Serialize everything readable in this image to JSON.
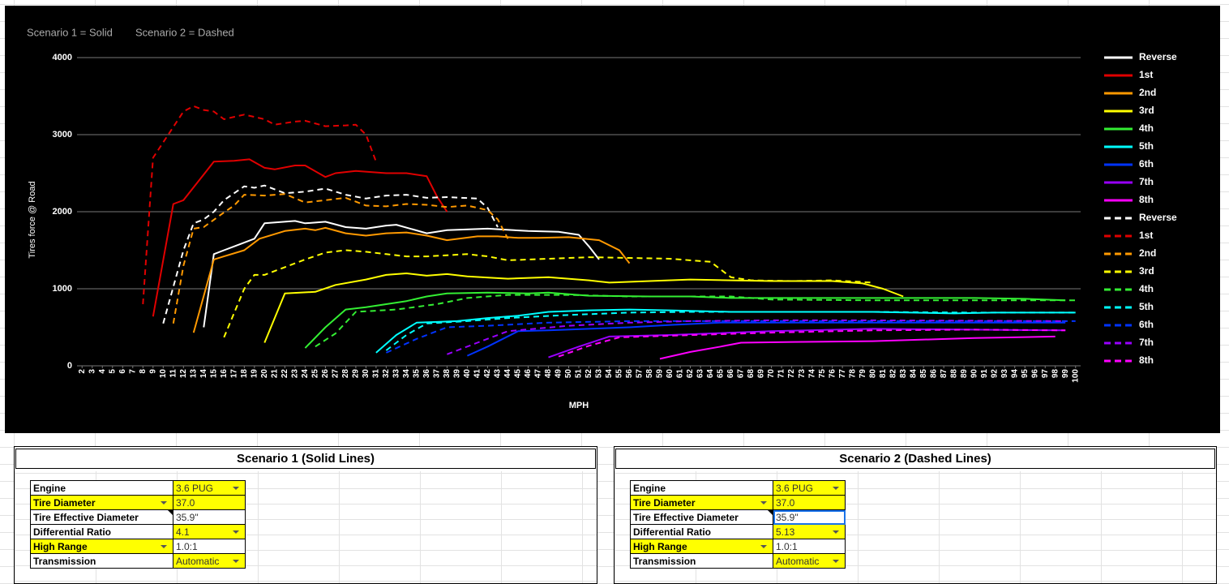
{
  "chart_data": {
    "type": "line",
    "annotations": [
      "Scenario 1 = Solid",
      "Scenario 2 = Dashed"
    ],
    "ylabel": "Tires force @ Road",
    "xlabel": "MPH",
    "ylim": [
      0,
      4000
    ],
    "yticks": [
      0,
      1000,
      2000,
      3000,
      4000
    ],
    "xlim": [
      1.5,
      100.5
    ],
    "xticks": [
      2,
      3,
      4,
      5,
      6,
      7,
      8,
      9,
      10,
      11,
      12,
      13,
      14,
      15,
      16,
      17,
      18,
      19,
      20,
      21,
      22,
      23,
      24,
      25,
      26,
      27,
      28,
      29,
      30,
      31,
      32,
      33,
      34,
      35,
      36,
      37,
      38,
      39,
      40,
      41,
      42,
      43,
      44,
      45,
      46,
      47,
      48,
      49,
      50,
      51,
      52,
      53,
      54,
      55,
      56,
      57,
      58,
      59,
      60,
      61,
      62,
      63,
      64,
      65,
      66,
      67,
      68,
      69,
      70,
      71,
      72,
      73,
      74,
      75,
      76,
      77,
      78,
      79,
      80,
      81,
      82,
      83,
      84,
      85,
      86,
      87,
      88,
      89,
      90,
      91,
      92,
      93,
      94,
      95,
      96,
      97,
      98,
      99,
      100
    ],
    "grid": true,
    "series": [
      {
        "name": "Reverse",
        "color": "#ffffff",
        "dashed": false,
        "x": [
          14,
          15,
          16,
          17,
          19,
          20,
          23,
          24,
          26,
          28,
          30,
          32,
          33,
          36,
          38,
          42,
          46,
          49,
          51,
          52,
          53
        ],
        "values": [
          500,
          1450,
          1500,
          1550,
          1650,
          1850,
          1880,
          1850,
          1870,
          1800,
          1780,
          1820,
          1830,
          1720,
          1760,
          1780,
          1750,
          1740,
          1700,
          1550,
          1380
        ]
      },
      {
        "name": "1st",
        "color": "#e00000",
        "dashed": false,
        "x": [
          9,
          11,
          12,
          13.5,
          15,
          17,
          18.5,
          20,
          21,
          23,
          24,
          26,
          27,
          29,
          32,
          34,
          36,
          37,
          38
        ],
        "values": [
          640,
          2100,
          2150,
          2400,
          2650,
          2660,
          2680,
          2570,
          2550,
          2600,
          2600,
          2450,
          2500,
          2530,
          2500,
          2500,
          2460,
          2200,
          2000
        ]
      },
      {
        "name": "2nd",
        "color": "#ff9900",
        "dashed": false,
        "x": [
          13,
          15,
          16,
          18,
          19.5,
          22,
          24,
          25,
          26,
          28,
          30,
          32,
          34,
          36,
          38,
          41,
          43,
          45,
          47,
          50,
          53,
          55,
          56
        ],
        "values": [
          430,
          1380,
          1420,
          1500,
          1650,
          1750,
          1780,
          1760,
          1790,
          1720,
          1690,
          1720,
          1730,
          1690,
          1630,
          1680,
          1680,
          1660,
          1660,
          1670,
          1630,
          1500,
          1330
        ]
      },
      {
        "name": "3rd",
        "color": "#ffff00",
        "dashed": false,
        "x": [
          20,
          22,
          25,
          27,
          30,
          32,
          34,
          36,
          38,
          40,
          44,
          48,
          52,
          54,
          58,
          62,
          66,
          70,
          76,
          79,
          81,
          83
        ],
        "values": [
          300,
          940,
          960,
          1050,
          1120,
          1180,
          1200,
          1170,
          1190,
          1160,
          1130,
          1150,
          1110,
          1080,
          1100,
          1120,
          1110,
          1100,
          1100,
          1070,
          1000,
          900
        ]
      },
      {
        "name": "4th",
        "color": "#33ee33",
        "dashed": false,
        "x": [
          24,
          26,
          28,
          30,
          32,
          34,
          36,
          38,
          42,
          46,
          48,
          52,
          58,
          62,
          66,
          70,
          80,
          90,
          95,
          99
        ],
        "values": [
          230,
          500,
          730,
          760,
          800,
          840,
          900,
          940,
          950,
          940,
          950,
          910,
          900,
          900,
          880,
          880,
          880,
          880,
          870,
          850
        ]
      },
      {
        "name": "5th",
        "color": "#00ffff",
        "dashed": false,
        "x": [
          31,
          33,
          35,
          37,
          39,
          42,
          45,
          48,
          52,
          56,
          60,
          66,
          72,
          80,
          88,
          92,
          100
        ],
        "values": [
          170,
          400,
          560,
          570,
          580,
          620,
          650,
          700,
          720,
          730,
          720,
          700,
          700,
          700,
          680,
          690,
          690
        ]
      },
      {
        "name": "6th",
        "color": "#0033ff",
        "dashed": false,
        "x": [
          40,
          42,
          45,
          48,
          52,
          56,
          60,
          65,
          70,
          80,
          90,
          99
        ],
        "values": [
          130,
          250,
          450,
          460,
          480,
          500,
          530,
          560,
          560,
          560,
          560,
          560
        ]
      },
      {
        "name": "7th",
        "color": "#9900ff",
        "dashed": false,
        "x": [
          48,
          51,
          54,
          60,
          70,
          80,
          90,
          99
        ],
        "values": [
          110,
          250,
          380,
          400,
          450,
          480,
          470,
          460
        ]
      },
      {
        "name": "8th",
        "color": "#ff00ff",
        "dashed": false,
        "x": [
          59,
          62,
          65,
          67,
          72,
          80,
          90,
          98
        ],
        "values": [
          90,
          180,
          250,
          300,
          310,
          320,
          360,
          380
        ]
      },
      {
        "name": "Reverse",
        "color": "#ffffff",
        "dashed": true,
        "x": [
          10,
          12,
          13,
          14,
          15,
          16,
          18,
          19,
          20,
          22,
          24,
          26,
          28,
          30,
          32,
          34,
          36,
          38,
          41,
          42,
          43
        ],
        "values": [
          550,
          1500,
          1850,
          1900,
          2000,
          2150,
          2330,
          2310,
          2340,
          2240,
          2260,
          2300,
          2220,
          2170,
          2210,
          2220,
          2180,
          2190,
          2170,
          2050,
          1800
        ]
      },
      {
        "name": "1st",
        "color": "#e00000",
        "dashed": true,
        "x": [
          8,
          9,
          10,
          11,
          12,
          13,
          14,
          15,
          16,
          17,
          18,
          20,
          21,
          23,
          24,
          26,
          28,
          29,
          30,
          31
        ],
        "values": [
          800,
          2700,
          2900,
          3100,
          3300,
          3370,
          3320,
          3300,
          3200,
          3230,
          3260,
          3200,
          3130,
          3170,
          3180,
          3110,
          3120,
          3130,
          3000,
          2650
        ]
      },
      {
        "name": "2nd",
        "color": "#ff9900",
        "dashed": true,
        "x": [
          11,
          12,
          13,
          14,
          16,
          17,
          18,
          20,
          22,
          24,
          26,
          28,
          30,
          32,
          34,
          36,
          38,
          40,
          42,
          43,
          44
        ],
        "values": [
          550,
          1300,
          1780,
          1800,
          1990,
          2080,
          2220,
          2210,
          2230,
          2120,
          2150,
          2180,
          2080,
          2070,
          2100,
          2090,
          2060,
          2080,
          2020,
          1900,
          1650
        ]
      },
      {
        "name": "3rd",
        "color": "#ffff00",
        "dashed": true,
        "x": [
          16,
          18,
          19,
          20,
          22,
          24,
          26,
          28,
          30,
          32,
          34,
          36,
          40,
          42,
          44,
          48,
          52,
          56,
          60,
          64,
          66,
          68,
          72,
          76,
          80
        ],
        "values": [
          370,
          1000,
          1180,
          1180,
          1280,
          1380,
          1470,
          1500,
          1480,
          1450,
          1420,
          1420,
          1450,
          1420,
          1370,
          1390,
          1410,
          1400,
          1390,
          1350,
          1150,
          1110,
          1100,
          1110,
          1080
        ]
      },
      {
        "name": "4th",
        "color": "#33ee33",
        "dashed": true,
        "x": [
          25,
          27,
          29,
          33,
          37,
          40,
          44,
          50,
          56,
          60,
          66,
          70,
          80,
          88,
          100
        ],
        "values": [
          250,
          420,
          700,
          730,
          800,
          880,
          920,
          920,
          900,
          900,
          900,
          860,
          850,
          850,
          850
        ]
      },
      {
        "name": "5th",
        "color": "#00ffff",
        "dashed": true,
        "x": [
          32,
          34,
          36,
          40,
          44,
          50,
          56,
          62,
          70,
          80,
          90,
          100
        ],
        "values": [
          200,
          400,
          550,
          580,
          620,
          660,
          690,
          700,
          700,
          700,
          690,
          690
        ]
      },
      {
        "name": "6th",
        "color": "#0033ff",
        "dashed": true,
        "x": [
          32,
          35,
          38,
          42,
          48,
          56,
          66,
          80,
          90,
          100
        ],
        "values": [
          170,
          350,
          500,
          520,
          560,
          580,
          580,
          580,
          580,
          580
        ]
      },
      {
        "name": "7th",
        "color": "#9900ff",
        "dashed": true,
        "x": [
          38,
          41,
          44,
          50,
          56,
          62,
          70,
          80,
          99
        ],
        "values": [
          150,
          300,
          450,
          520,
          560,
          580,
          590,
          590,
          580
        ]
      },
      {
        "name": "8th",
        "color": "#ff00ff",
        "dashed": true,
        "x": [
          49,
          52,
          55,
          60,
          70,
          80,
          90,
          99
        ],
        "values": [
          120,
          260,
          370,
          390,
          430,
          460,
          470,
          460
        ]
      }
    ]
  },
  "tables": [
    {
      "title": "Scenario 1 (Solid Lines)",
      "rows": [
        [
          "Engine",
          "3.6 PUG"
        ],
        [
          "Tire Diameter",
          "37.0"
        ],
        [
          "Tire Effective Diameter",
          "35.9\""
        ],
        [
          "Differential Ratio",
          "4.1"
        ],
        [
          "High Range",
          "1.0:1"
        ],
        [
          "Transmission",
          "Automatic"
        ]
      ]
    },
    {
      "title": "Scenario 2 (Dashed Lines)",
      "rows": [
        [
          "Engine",
          "3.6 PUG"
        ],
        [
          "Tire Diameter",
          "37.0"
        ],
        [
          "Tire Effective Diameter",
          "35.9\""
        ],
        [
          "Differential Ratio",
          "5.13"
        ],
        [
          "High Range",
          "1.0:1"
        ],
        [
          "Transmission",
          "Automatic"
        ]
      ]
    }
  ]
}
